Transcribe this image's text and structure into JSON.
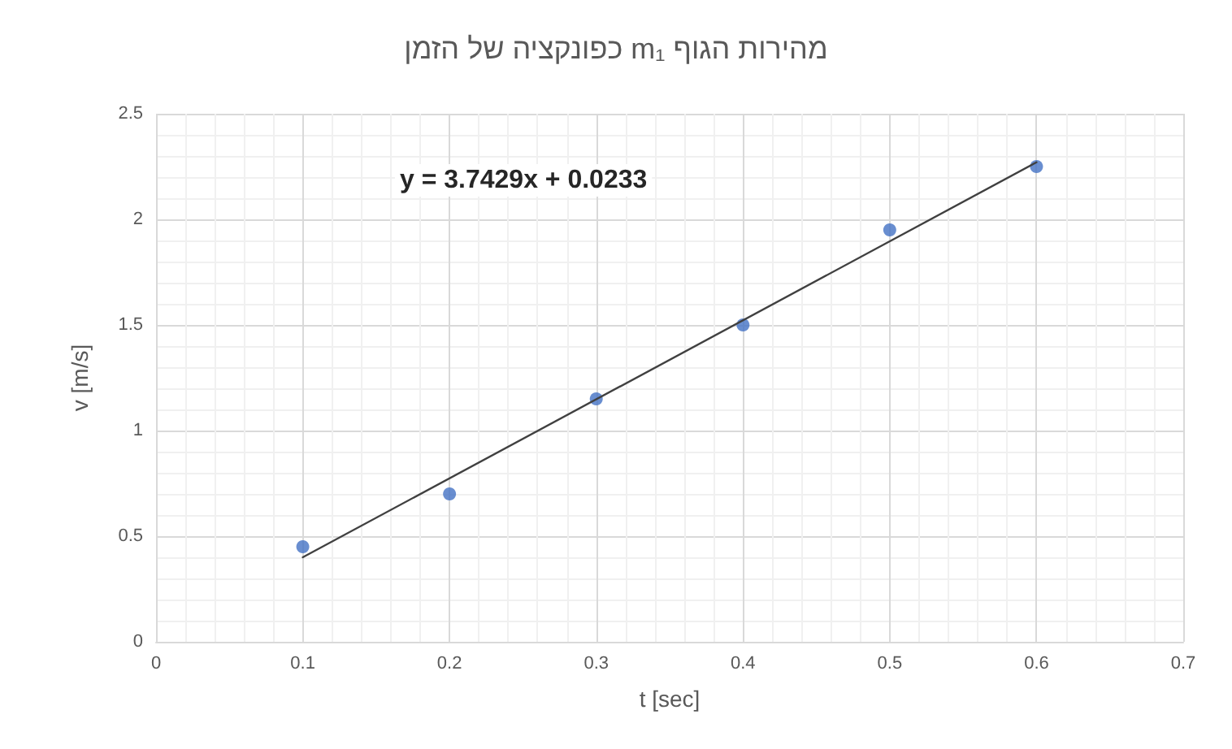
{
  "chart_data": {
    "type": "scatter",
    "title": "מהירות הגוף m₁ כפונקציה של הזמן",
    "xlabel": "t [sec]",
    "ylabel": "v [m/s]",
    "x": [
      0.1,
      0.2,
      0.3,
      0.4,
      0.5,
      0.6
    ],
    "series": [
      {
        "color": "#4472c4",
        "values": [
          0.45,
          0.7,
          1.15,
          1.5,
          1.95,
          2.25
        ],
        "marker": "circle"
      },
      {
        "type": "line",
        "color": "#404040",
        "x": [
          0.1,
          0.6
        ],
        "values": [
          0.4,
          2.27
        ],
        "marker": "none",
        "line_style": "solid"
      }
    ],
    "annotations": [
      "y = 3.7429x + 0.0233"
    ],
    "xlim": [
      0,
      0.7
    ],
    "xticks": [
      0,
      0.1,
      0.2,
      0.3,
      0.4,
      0.5,
      0.6,
      0.7
    ],
    "ylim": [
      0,
      2.5
    ],
    "yticks": [
      0,
      0.5,
      1,
      1.5,
      2,
      2.5
    ],
    "grid": true
  }
}
